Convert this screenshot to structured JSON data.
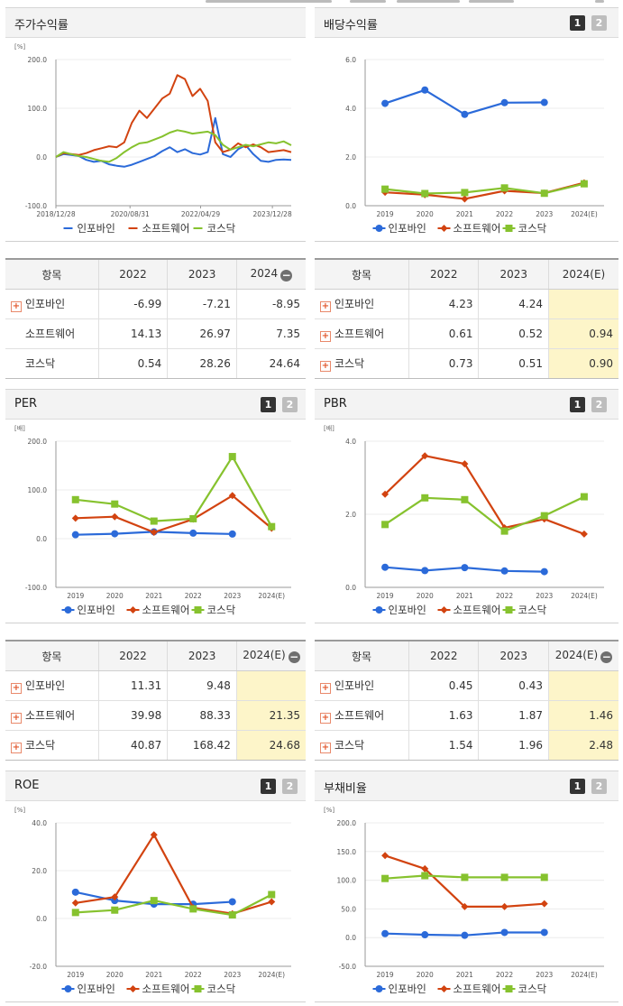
{
  "colors": {
    "series1": "#2b6ad9",
    "series2": "#d24310",
    "series3": "#86c22e",
    "estimate_bg": "#fdf5c9"
  },
  "buttons": {
    "one": "1",
    "two": "2"
  },
  "legend": [
    "인포바인",
    "소프트웨어",
    "코스닥"
  ],
  "panels": {
    "stock_return": {
      "title": "주가수익률"
    },
    "dividend": {
      "title": "배당수익률"
    },
    "per": {
      "title": "PER"
    },
    "pbr": {
      "title": "PBR"
    },
    "roe": {
      "title": "ROE"
    },
    "debt": {
      "title": "부채비율"
    }
  },
  "tables": {
    "stock_return": {
      "header": [
        "항목",
        "2022",
        "2023",
        "2024"
      ],
      "rows": [
        {
          "name": "인포바인",
          "icon": "plus",
          "v": [
            "-6.99",
            "-7.21",
            "-8.95"
          ],
          "est": false
        },
        {
          "name": "소프트웨어",
          "icon": "none",
          "v": [
            "14.13",
            "26.97",
            "7.35"
          ],
          "est": false
        },
        {
          "name": "코스닥",
          "icon": "none",
          "v": [
            "0.54",
            "28.26",
            "24.64"
          ],
          "est": false
        }
      ]
    },
    "dividend": {
      "header": [
        "항목",
        "2022",
        "2023",
        "2024(E)"
      ],
      "rows": [
        {
          "name": "인포바인",
          "icon": "plus",
          "v": [
            "4.23",
            "4.24",
            ""
          ],
          "est": true
        },
        {
          "name": "소프트웨어",
          "icon": "plus",
          "v": [
            "0.61",
            "0.52",
            "0.94"
          ],
          "est": true
        },
        {
          "name": "코스닥",
          "icon": "plus",
          "v": [
            "0.73",
            "0.51",
            "0.90"
          ],
          "est": true
        }
      ]
    },
    "per": {
      "header": [
        "항목",
        "2022",
        "2023",
        "2024(E)"
      ],
      "rows": [
        {
          "name": "인포바인",
          "icon": "plus",
          "v": [
            "11.31",
            "9.48",
            ""
          ],
          "est": true
        },
        {
          "name": "소프트웨어",
          "icon": "plus",
          "v": [
            "39.98",
            "88.33",
            "21.35"
          ],
          "est": true
        },
        {
          "name": "코스닥",
          "icon": "plus",
          "v": [
            "40.87",
            "168.42",
            "24.68"
          ],
          "est": true
        }
      ]
    },
    "pbr": {
      "header": [
        "항목",
        "2022",
        "2023",
        "2024(E)"
      ],
      "rows": [
        {
          "name": "인포바인",
          "icon": "plus",
          "v": [
            "0.45",
            "0.43",
            ""
          ],
          "est": true
        },
        {
          "name": "소프트웨어",
          "icon": "plus",
          "v": [
            "1.63",
            "1.87",
            "1.46"
          ],
          "est": true
        },
        {
          "name": "코스닥",
          "icon": "plus",
          "v": [
            "1.54",
            "1.96",
            "2.48"
          ],
          "est": true
        }
      ]
    }
  },
  "chart_data": [
    {
      "id": "stock_return",
      "type": "line",
      "unit": "[%]",
      "ylim": [
        -100,
        200
      ],
      "yticks": [
        "200.0",
        "100.0",
        "0.0",
        "-100.0"
      ],
      "xticks": [
        "2018/12/28",
        "2020/08/31",
        "2022/04/29",
        "2023/12/28"
      ],
      "series": [
        {
          "name": "인포바인",
          "values": [
            0,
            6,
            4,
            2,
            -6,
            -10,
            -8,
            -15,
            -18,
            -20,
            -16,
            -10,
            -4,
            2,
            12,
            20,
            10,
            16,
            8,
            5,
            10,
            80,
            6,
            0,
            16,
            24,
            6,
            -8,
            -10,
            -6,
            -5,
            -6
          ]
        },
        {
          "name": "소프트웨어",
          "values": [
            0,
            8,
            6,
            4,
            8,
            14,
            18,
            22,
            20,
            30,
            70,
            95,
            80,
            100,
            120,
            130,
            168,
            160,
            125,
            140,
            115,
            30,
            10,
            15,
            28,
            20,
            26,
            20,
            10,
            12,
            14,
            10
          ]
        },
        {
          "name": "코스닥",
          "values": [
            0,
            10,
            6,
            2,
            0,
            -4,
            -8,
            -10,
            -2,
            10,
            20,
            28,
            30,
            36,
            42,
            50,
            55,
            52,
            48,
            50,
            52,
            45,
            25,
            15,
            20,
            25,
            22,
            26,
            30,
            28,
            32,
            24
          ]
        }
      ]
    },
    {
      "id": "dividend",
      "type": "line",
      "unit": "",
      "ylim": [
        0,
        6
      ],
      "yticks": [
        "6.0",
        "4.0",
        "2.0",
        "0.0"
      ],
      "categories": [
        "2019",
        "2020",
        "2021",
        "2022",
        "2023",
        "2024(E)"
      ],
      "series": [
        {
          "name": "인포바인",
          "values": [
            4.2,
            4.75,
            3.75,
            4.23,
            4.24,
            null
          ]
        },
        {
          "name": "소프트웨어",
          "values": [
            0.55,
            0.45,
            0.28,
            0.61,
            0.52,
            0.94
          ]
        },
        {
          "name": "코스닥",
          "values": [
            0.68,
            0.5,
            0.54,
            0.73,
            0.51,
            0.9
          ]
        }
      ]
    },
    {
      "id": "per",
      "type": "line",
      "unit": "[배]",
      "ylim": [
        -100,
        200
      ],
      "yticks": [
        "200.0",
        "100.0",
        "0.0",
        "-100.0"
      ],
      "categories": [
        "2019",
        "2020",
        "2021",
        "2022",
        "2023",
        "2024(E)"
      ],
      "series": [
        {
          "name": "인포바인",
          "values": [
            8,
            10,
            14,
            11.31,
            9.48,
            null
          ]
        },
        {
          "name": "소프트웨어",
          "values": [
            42,
            45,
            13,
            39.98,
            88.33,
            21.35
          ]
        },
        {
          "name": "코스닥",
          "values": [
            80,
            71,
            36,
            40.87,
            168.42,
            24.68
          ]
        }
      ]
    },
    {
      "id": "pbr",
      "type": "line",
      "unit": "[배]",
      "ylim": [
        0,
        4
      ],
      "yticks": [
        "4.0",
        "2.0",
        "0.0"
      ],
      "categories": [
        "2019",
        "2020",
        "2021",
        "2022",
        "2023",
        "2024(E)"
      ],
      "series": [
        {
          "name": "인포바인",
          "values": [
            0.55,
            0.46,
            0.54,
            0.45,
            0.43,
            null
          ]
        },
        {
          "name": "소프트웨어",
          "values": [
            2.55,
            3.6,
            3.38,
            1.63,
            1.87,
            1.46
          ]
        },
        {
          "name": "코스닥",
          "values": [
            1.72,
            2.45,
            2.4,
            1.54,
            1.96,
            2.48
          ]
        }
      ]
    },
    {
      "id": "roe",
      "type": "line",
      "unit": "[%]",
      "ylim": [
        -20,
        40
      ],
      "yticks": [
        "40.0",
        "20.0",
        "0.0",
        "-20.0"
      ],
      "categories": [
        "2019",
        "2020",
        "2021",
        "2022",
        "2023",
        "2024(E)"
      ],
      "series": [
        {
          "name": "인포바인",
          "values": [
            11,
            7.5,
            6,
            6,
            7,
            null
          ]
        },
        {
          "name": "소프트웨어",
          "values": [
            6.5,
            9,
            35,
            4.5,
            2,
            7
          ]
        },
        {
          "name": "코스닥",
          "values": [
            2.5,
            3.5,
            7.5,
            4,
            1.5,
            10
          ]
        }
      ]
    },
    {
      "id": "debt",
      "type": "line",
      "unit": "[%]",
      "ylim": [
        -50,
        200
      ],
      "yticks": [
        "200.0",
        "150.0",
        "100.0",
        "50.0",
        "0.0",
        "-50.0"
      ],
      "categories": [
        "2019",
        "2020",
        "2021",
        "2022",
        "2023",
        "2024(E)"
      ],
      "series": [
        {
          "name": "인포바인",
          "values": [
            7,
            5,
            4,
            9,
            9,
            null
          ]
        },
        {
          "name": "소프트웨어",
          "values": [
            143,
            120,
            54,
            54,
            59,
            null
          ]
        },
        {
          "name": "코스닥",
          "values": [
            103,
            108,
            105,
            105,
            105,
            null
          ]
        }
      ]
    }
  ]
}
